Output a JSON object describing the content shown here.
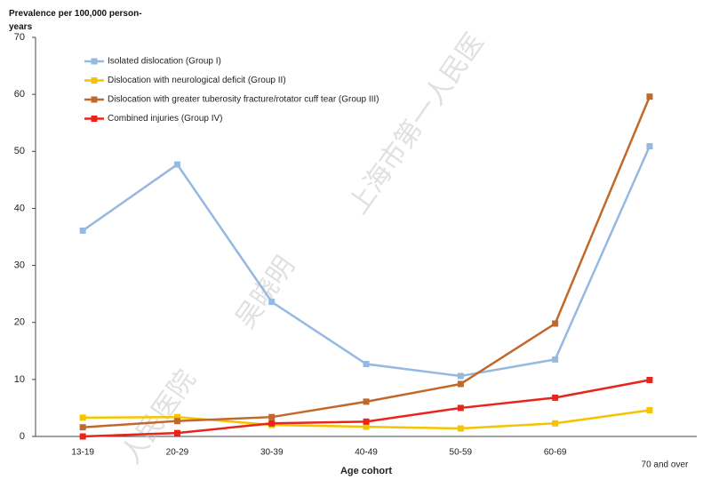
{
  "chart_data": {
    "type": "line",
    "ylabel": "Prevalence per 100,000 person-years",
    "xlabel": "Age cohort",
    "categories": [
      "13-19",
      "20-29",
      "30-39",
      "40-49",
      "50-59",
      "60-69",
      "70 and over"
    ],
    "series": [
      {
        "name": "Isolated dislocation (Group I)",
        "color": "#95b9e0",
        "values": [
          36.1,
          47.7,
          23.6,
          12.7,
          10.6,
          13.5,
          50.9
        ]
      },
      {
        "name": "Dislocation with neurological deficit (Group II)",
        "color": "#f5c400",
        "values": [
          3.3,
          3.4,
          2.0,
          1.7,
          1.4,
          2.3,
          4.6
        ]
      },
      {
        "name": "Dislocation with greater tuberosity fracture/rotator cuff tear (Group III)",
        "color": "#c0692a",
        "values": [
          1.6,
          2.7,
          3.4,
          6.1,
          9.2,
          19.8,
          59.6
        ]
      },
      {
        "name": "Combined injuries (Group IV)",
        "color": "#e8241c",
        "values": [
          0.0,
          0.6,
          2.3,
          2.6,
          5.0,
          6.8,
          9.9
        ]
      }
    ],
    "ylim": [
      0,
      70
    ],
    "yticks": [
      0,
      10,
      20,
      30,
      40,
      50,
      60,
      70
    ],
    "grid": false,
    "watermark": [
      "人民医院",
      "吴晓明",
      "上海市第一人民医"
    ]
  }
}
